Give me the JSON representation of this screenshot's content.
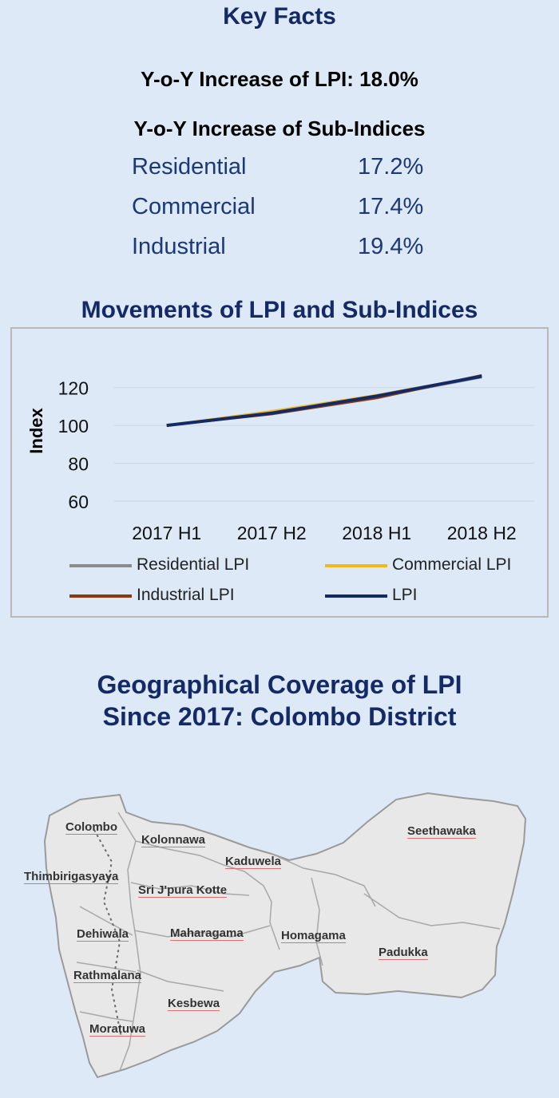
{
  "key_facts": {
    "heading": "Key Facts",
    "lpi_increase": "Y-o-Y Increase of LPI: 18.0%",
    "sub_heading": "Y-o-Y Increase of Sub-Indices",
    "sub_indices": [
      {
        "name": "Residential",
        "value": "17.2%"
      },
      {
        "name": "Commercial",
        "value": "17.4%"
      },
      {
        "name": "Industrial",
        "value": "19.4%"
      }
    ]
  },
  "chart_title": "Movements of LPI and Sub-Indices",
  "chart_data": {
    "type": "line",
    "categories": [
      "2017 H1",
      "2017 H2",
      "2018 H1",
      "2018 H2"
    ],
    "ylabel": "Index",
    "ylim": [
      60,
      130
    ],
    "yticks": [
      60,
      80,
      100,
      120
    ],
    "grid": true,
    "legend_position": "bottom",
    "series": [
      {
        "name": "Residential LPI",
        "color": "#8c8c8c",
        "values": [
          100,
          106.5,
          115,
          125.5
        ]
      },
      {
        "name": "Commercial LPI",
        "color": "#f2b81c",
        "values": [
          100,
          107.5,
          116,
          126
        ]
      },
      {
        "name": "Industrial LPI",
        "color": "#8b3a10",
        "values": [
          100,
          106,
          114.5,
          126.5
        ]
      },
      {
        "name": "LPI",
        "color": "#142a66",
        "values": [
          100,
          106.5,
          115.5,
          126
        ]
      }
    ]
  },
  "map": {
    "heading_line1": "Geographical Coverage of LPI",
    "heading_line2": "Since 2017: Colombo District",
    "regions": [
      "Colombo",
      "Kolonnawa",
      "Seethawaka",
      "Kaduwela",
      "Thimbirigasyaya",
      "Sri J'pura Kotte",
      "Dehiwala",
      "Maharagama",
      "Homagama",
      "Padukka",
      "Rathmalana",
      "Kesbewa",
      "Moratuwa"
    ]
  }
}
